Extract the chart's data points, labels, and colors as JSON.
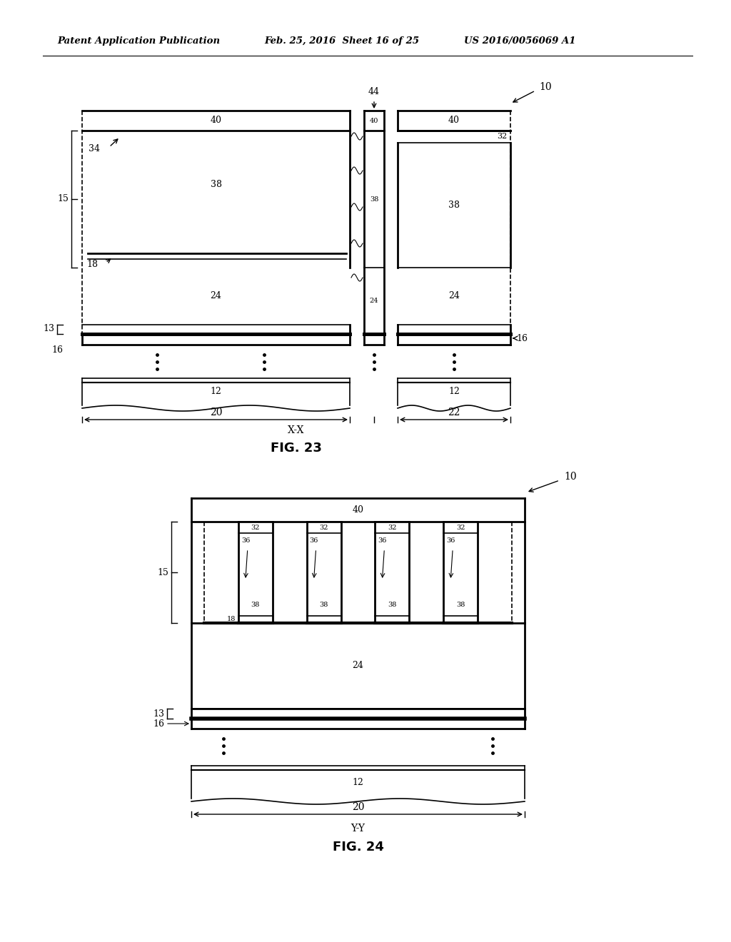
{
  "background_color": "#ffffff",
  "header_text": "Patent Application Publication",
  "header_date": "Feb. 25, 2016  Sheet 16 of 25",
  "header_patent": "US 2016/0056069 A1",
  "fig23_title": "FIG. 23",
  "fig24_title": "FIG. 24",
  "label_font_size": 9,
  "title_font_size": 13
}
